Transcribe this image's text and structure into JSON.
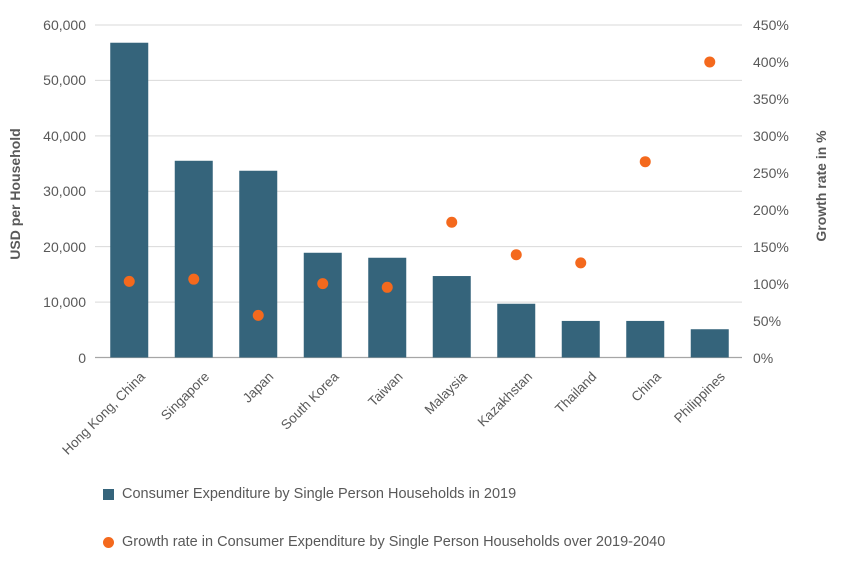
{
  "chart_data": {
    "type": "combo-bar-scatter",
    "categories": [
      "Hong Kong, China",
      "Singapore",
      "Japan",
      "South Korea",
      "Taiwan",
      "Malaysia",
      "Kazakhstan",
      "Thailand",
      "China",
      "Philippines"
    ],
    "series": [
      {
        "name": "Consumer Expenditure by Single Person Households in 2019",
        "type": "bar",
        "axis": "left",
        "marker": "square",
        "color": "#35647B",
        "values": [
          56800,
          35500,
          33700,
          18900,
          18000,
          14700,
          9700,
          6600,
          6600,
          5100
        ]
      },
      {
        "name": "Growth rate in Consumer Expenditure by Single Person Households over 2019-2040",
        "type": "scatter",
        "axis": "right",
        "marker": "circle",
        "color": "#F4691D",
        "values": [
          103,
          106,
          57,
          100,
          95,
          183,
          139,
          128,
          265,
          400
        ]
      }
    ],
    "left_axis": {
      "title": "USD per Household",
      "min": 0,
      "max": 60000,
      "step": 10000,
      "tick_labels": [
        "0",
        "10,000",
        "20,000",
        "30,000",
        "40,000",
        "50,000",
        "60,000"
      ]
    },
    "right_axis": {
      "title": "Growth rate in %",
      "min": 0,
      "max": 450,
      "step": 50,
      "tick_labels": [
        "0%",
        "50%",
        "100%",
        "150%",
        "200%",
        "250%",
        "300%",
        "350%",
        "400%",
        "450%"
      ]
    },
    "grid": true,
    "legend_position": "bottom-left"
  },
  "colors": {
    "text": "#595959",
    "gridline": "#D9D9D9",
    "axis_line": "#A6A6A6",
    "background": "#FFFFFF"
  }
}
